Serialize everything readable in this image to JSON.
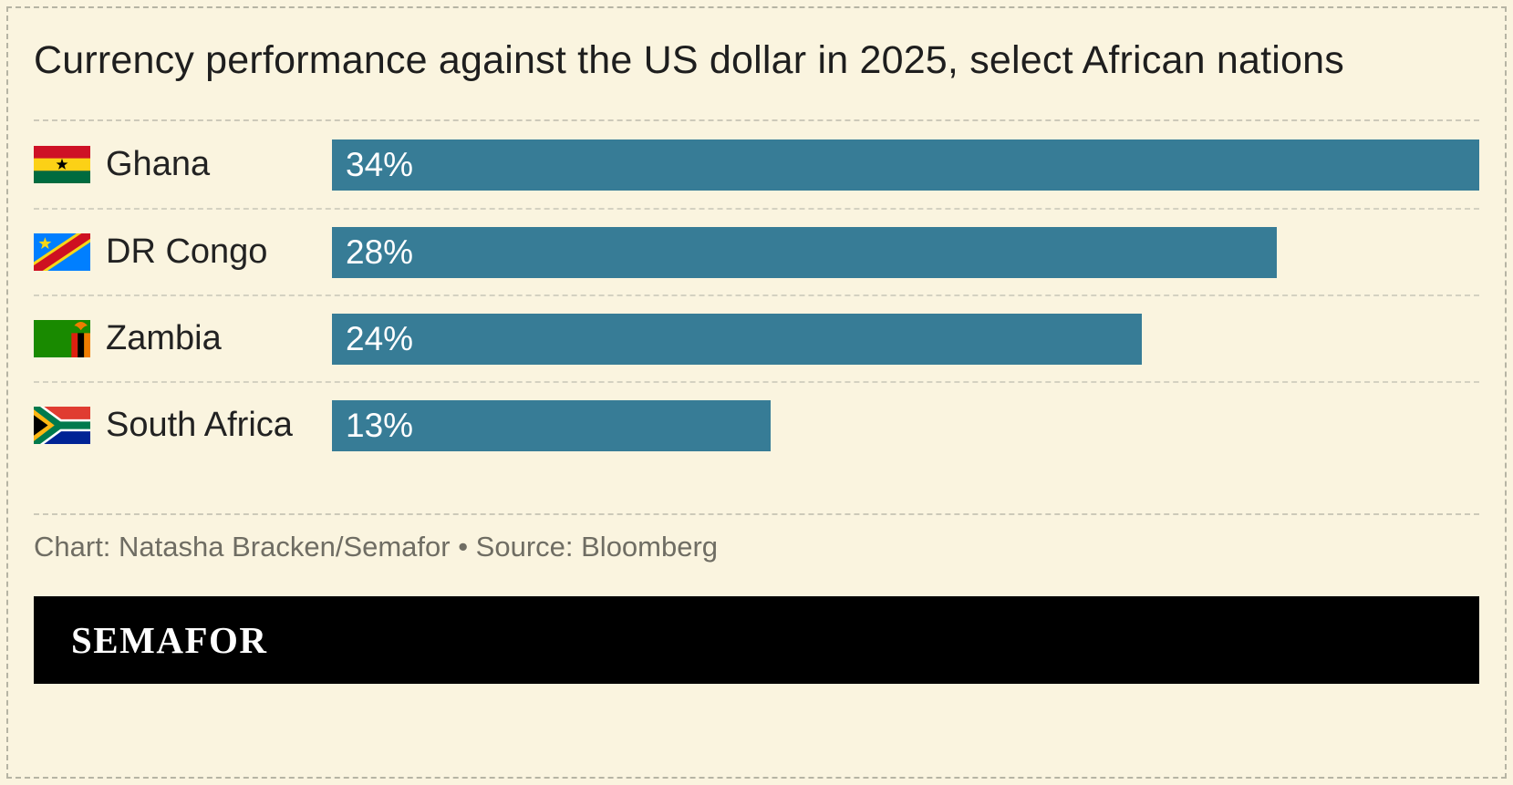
{
  "header": {
    "title": "Currency performance against the US dollar in 2025, select African nations"
  },
  "chart_data": {
    "type": "bar",
    "orientation": "horizontal",
    "title": "Currency performance against the US dollar in 2025, select African nations",
    "categories": [
      "Ghana",
      "DR Congo",
      "Zambia",
      "South Africa"
    ],
    "values": [
      34,
      28,
      24,
      13
    ],
    "labels": [
      "34%",
      "28%",
      "24%",
      "13%"
    ],
    "unit": "%",
    "xlim": [
      0,
      34
    ],
    "bar_color": "#377C96",
    "grid": false,
    "legend": false,
    "value_label_position": "inside-left",
    "flag_icons": [
      "ghana-flag-icon",
      "dr-congo-flag-icon",
      "zambia-flag-icon",
      "south-africa-flag-icon"
    ]
  },
  "footer": {
    "credit": "Chart: Natasha Bracken/Semafor • Source: Bloomberg",
    "brand": "SEMAFOR"
  },
  "colors": {
    "background": "#FAF4DF",
    "bar": "#377C96",
    "title_text": "#1E1E1E",
    "credit_text": "#6F6D63",
    "separator": "#CCC9B9",
    "banner_bg": "#000000",
    "banner_text": "#FFFFFF"
  }
}
